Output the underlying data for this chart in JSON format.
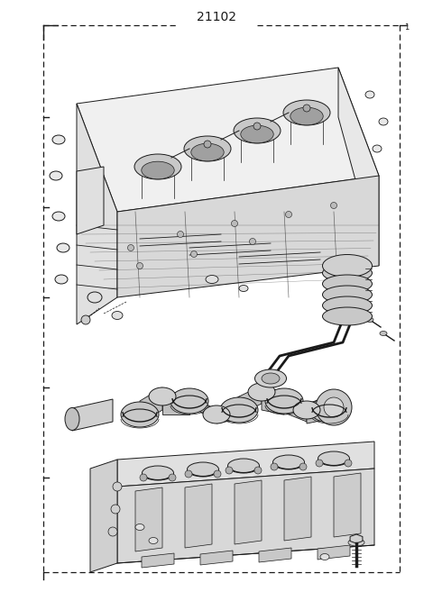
{
  "title": "21102",
  "title_fontsize": 10,
  "background_color": "#ffffff",
  "line_color": "#1a1a1a",
  "border_dashes": [
    5,
    3
  ],
  "border_lw": 0.9,
  "fig_width": 4.8,
  "fig_height": 6.57,
  "dpi": 100
}
